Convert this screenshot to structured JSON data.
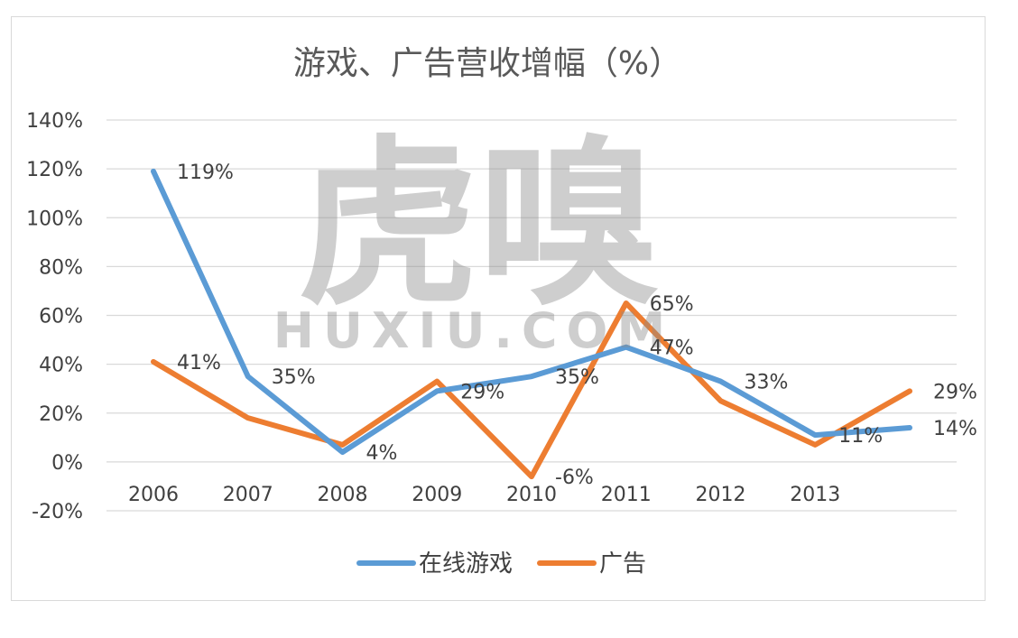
{
  "chart_data": {
    "type": "line",
    "title": "游戏、广告营收增幅（%）",
    "categories": [
      "2006",
      "2007",
      "2008",
      "2009",
      "2010",
      "2011",
      "2012",
      "2013",
      ""
    ],
    "series": [
      {
        "name": "在线游戏",
        "color": "#5b9bd5",
        "values": [
          119,
          35,
          4,
          29,
          35,
          47,
          33,
          11,
          14
        ],
        "labels": [
          "119%",
          "35%",
          "4%",
          "29%",
          "35%",
          "47%",
          "33%",
          "11%",
          "14%"
        ]
      },
      {
        "name": "广告",
        "color": "#ed7d31",
        "values": [
          41,
          18,
          7,
          33,
          -6,
          65,
          25,
          7,
          29
        ],
        "labels": [
          "41%",
          "",
          "",
          "",
          "-6%",
          "65%",
          "",
          "",
          "29%"
        ]
      }
    ],
    "y_ticks": [
      "-20%",
      "0%",
      "20%",
      "40%",
      "60%",
      "80%",
      "100%",
      "120%",
      "140%"
    ],
    "ylim": [
      -20,
      140
    ],
    "grid": true,
    "legend": "bottom"
  },
  "watermark": {
    "main": "虎嗅",
    "sub": "HUXIU.COM"
  }
}
